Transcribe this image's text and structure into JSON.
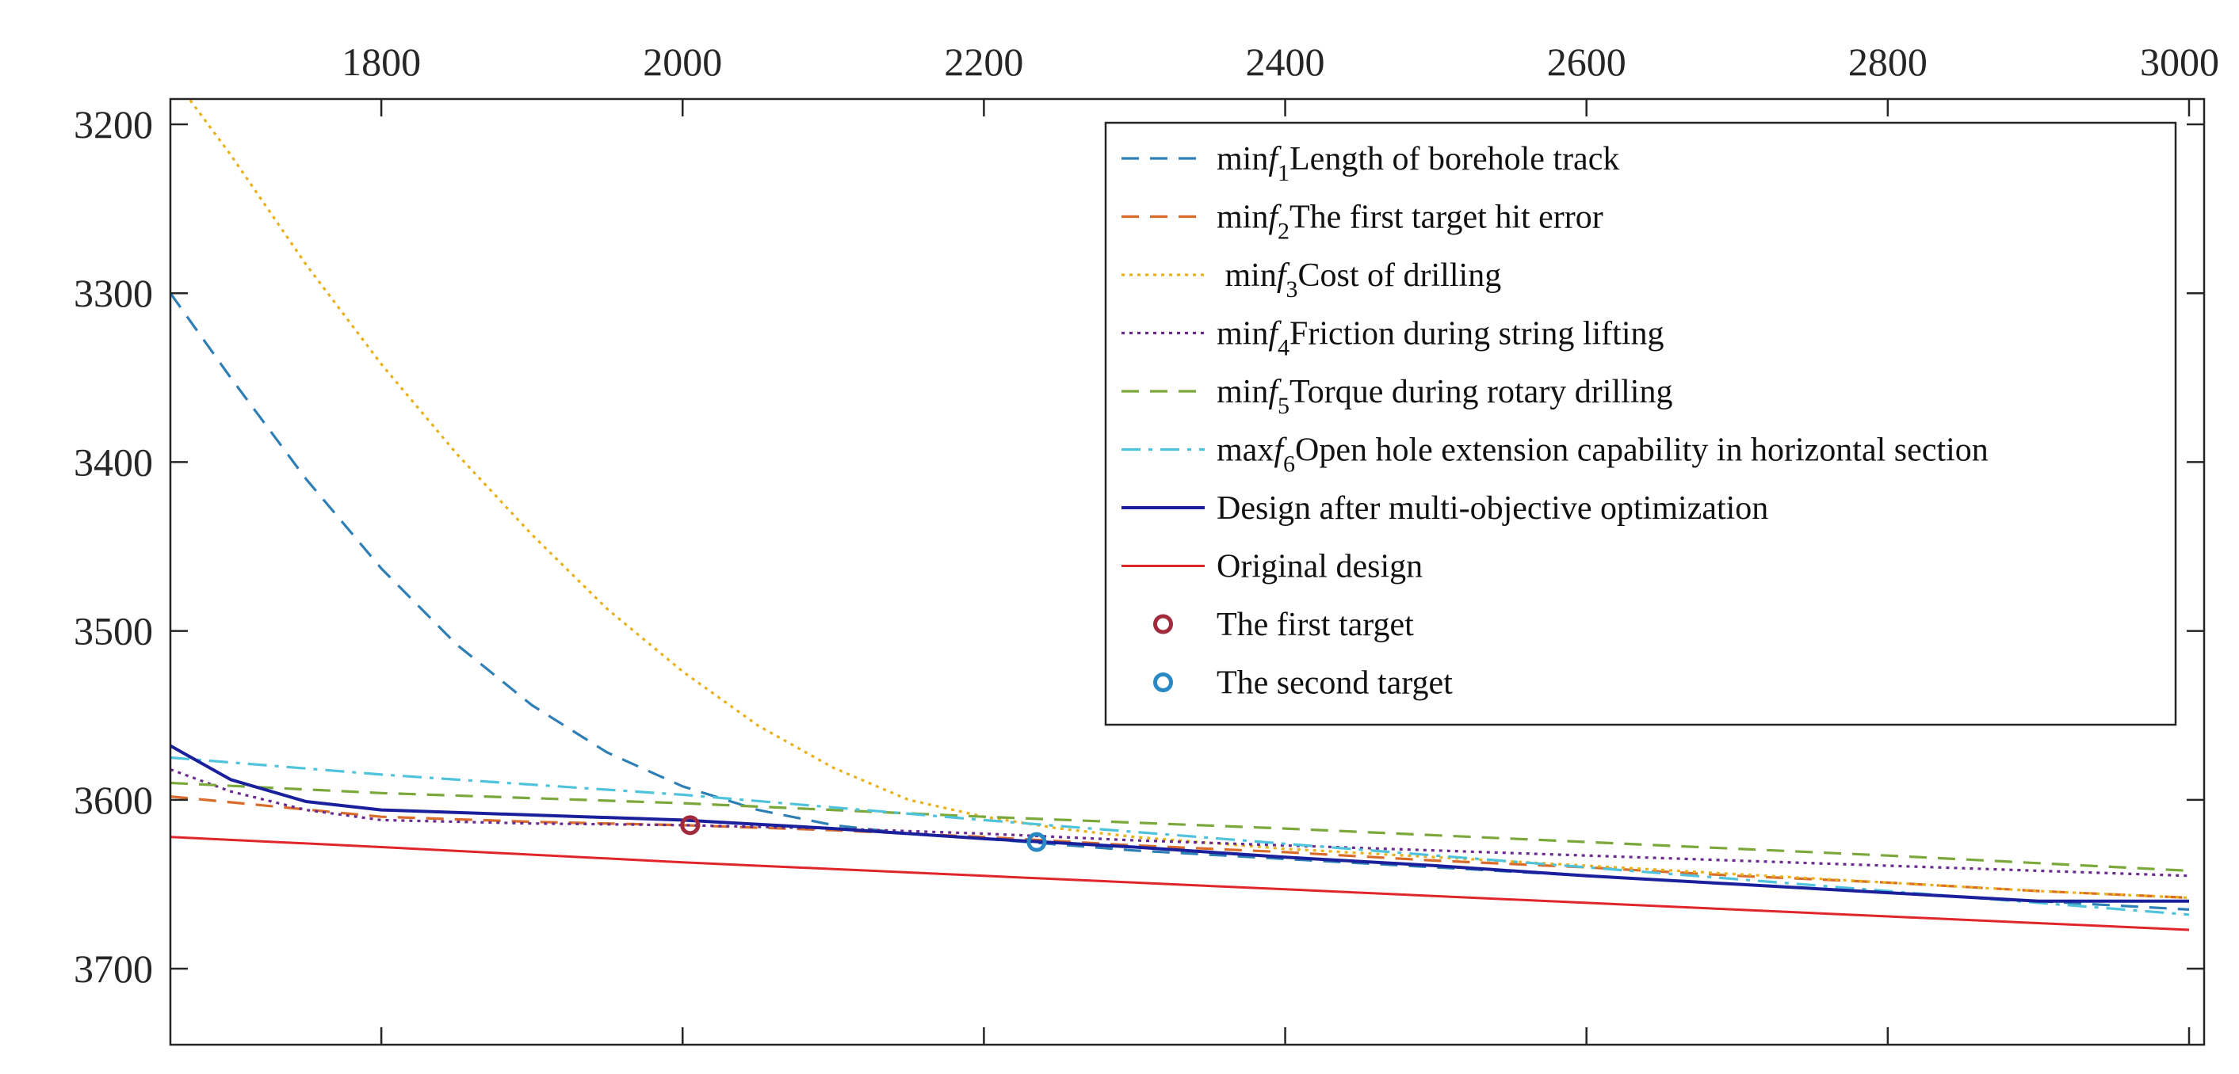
{
  "chart_data": {
    "type": "line",
    "title": "",
    "xlabel": "",
    "ylabel": "",
    "x_axis_position": "top",
    "y_axis_reversed": true,
    "xlim": [
      1660,
      3010
    ],
    "ylim": [
      3185,
      3745
    ],
    "xticks": [
      1800,
      2000,
      2200,
      2400,
      2600,
      2800,
      3000
    ],
    "yticks": [
      3200,
      3300,
      3400,
      3500,
      3600,
      3700
    ],
    "legend_position": "top-right",
    "series": [
      {
        "name": "Length of borehole track",
        "prefix": "min",
        "fvar": "f",
        "sub": "1",
        "color": "#2e7fb5",
        "dash": "dashed",
        "points": [
          [
            1660,
            3300
          ],
          [
            1700,
            3350
          ],
          [
            1750,
            3410
          ],
          [
            1800,
            3463
          ],
          [
            1850,
            3508
          ],
          [
            1900,
            3544
          ],
          [
            1950,
            3572
          ],
          [
            2000,
            3592
          ],
          [
            2050,
            3606
          ],
          [
            2100,
            3615
          ],
          [
            2150,
            3620
          ],
          [
            2200,
            3623
          ],
          [
            2300,
            3630
          ],
          [
            2400,
            3635
          ],
          [
            2500,
            3640
          ],
          [
            2600,
            3645
          ],
          [
            2700,
            3650
          ],
          [
            2800,
            3655
          ],
          [
            2900,
            3660
          ],
          [
            3000,
            3665
          ]
        ]
      },
      {
        "name": "The first target hit error",
        "prefix": "min",
        "fvar": "f",
        "sub": "2",
        "color": "#d96b2b",
        "dash": "dashed",
        "points": [
          [
            1660,
            3598
          ],
          [
            1800,
            3610
          ],
          [
            1900,
            3613
          ],
          [
            2000,
            3615
          ],
          [
            2100,
            3618
          ],
          [
            2200,
            3622
          ],
          [
            2300,
            3627
          ],
          [
            2400,
            3631
          ],
          [
            2500,
            3636
          ],
          [
            2600,
            3640
          ],
          [
            2700,
            3645
          ],
          [
            2800,
            3649
          ],
          [
            2900,
            3654
          ],
          [
            3000,
            3658
          ]
        ]
      },
      {
        "name": "Cost of drilling",
        "prefix": "min",
        "fvar": "f",
        "sub": "3",
        "color": "#e8b11a",
        "dash": "dotted",
        "lead_space": true,
        "points": [
          [
            1670,
            3182
          ],
          [
            1700,
            3218
          ],
          [
            1750,
            3283
          ],
          [
            1800,
            3342
          ],
          [
            1850,
            3395
          ],
          [
            1900,
            3443
          ],
          [
            1950,
            3487
          ],
          [
            2000,
            3524
          ],
          [
            2050,
            3556
          ],
          [
            2100,
            3581
          ],
          [
            2150,
            3600
          ],
          [
            2200,
            3610
          ],
          [
            2250,
            3617
          ],
          [
            2300,
            3622
          ],
          [
            2400,
            3629
          ],
          [
            2500,
            3634
          ],
          [
            2600,
            3639
          ],
          [
            2700,
            3644
          ],
          [
            2800,
            3649
          ],
          [
            2900,
            3654
          ],
          [
            3000,
            3658
          ]
        ]
      },
      {
        "name": "Friction during string lifting",
        "prefix": "min",
        "fvar": "f",
        "sub": "4",
        "color": "#6a2b8f",
        "dash": "dotted",
        "points": [
          [
            1660,
            3582
          ],
          [
            1700,
            3595
          ],
          [
            1750,
            3606
          ],
          [
            1800,
            3612
          ],
          [
            1900,
            3614
          ],
          [
            2000,
            3615
          ],
          [
            2100,
            3617
          ],
          [
            2200,
            3620
          ],
          [
            2300,
            3624
          ],
          [
            2400,
            3627
          ],
          [
            2500,
            3630
          ],
          [
            2600,
            3633
          ],
          [
            2700,
            3636
          ],
          [
            2800,
            3639
          ],
          [
            2900,
            3642
          ],
          [
            3000,
            3645
          ]
        ]
      },
      {
        "name": "Torque during rotary drilling",
        "prefix": "min",
        "fvar": "f",
        "sub": "5",
        "color": "#7aa83a",
        "dash": "dashed",
        "points": [
          [
            1660,
            3590
          ],
          [
            1800,
            3596
          ],
          [
            2000,
            3602
          ],
          [
            2200,
            3610
          ],
          [
            2400,
            3617
          ],
          [
            2600,
            3625
          ],
          [
            2800,
            3633
          ],
          [
            3000,
            3642
          ]
        ]
      },
      {
        "name": "Open hole extension capability in horizontal section",
        "prefix": "max",
        "fvar": "f",
        "sub": "6",
        "color": "#4fc3dc",
        "dash": "dashdot",
        "points": [
          [
            1660,
            3575
          ],
          [
            1800,
            3585
          ],
          [
            2000,
            3597
          ],
          [
            2200,
            3612
          ],
          [
            2400,
            3626
          ],
          [
            2600,
            3640
          ],
          [
            2800,
            3654
          ],
          [
            3000,
            3668
          ]
        ]
      },
      {
        "name": "Design after multi-objective optimization",
        "color": "#1a1f9c",
        "dash": "solid",
        "width": 4,
        "points": [
          [
            1660,
            3568
          ],
          [
            1700,
            3588
          ],
          [
            1750,
            3601
          ],
          [
            1800,
            3606
          ],
          [
            1900,
            3609
          ],
          [
            2000,
            3612
          ],
          [
            2100,
            3617
          ],
          [
            2200,
            3623
          ],
          [
            2300,
            3628
          ],
          [
            2400,
            3634
          ],
          [
            2500,
            3639
          ],
          [
            2600,
            3645
          ],
          [
            2700,
            3650
          ],
          [
            2800,
            3655
          ],
          [
            2900,
            3660
          ],
          [
            3000,
            3660
          ]
        ]
      },
      {
        "name": "Original design",
        "color": "#e0262b",
        "dash": "solid",
        "width": 3,
        "points": [
          [
            1660,
            3622
          ],
          [
            1800,
            3628
          ],
          [
            2000,
            3637
          ],
          [
            2200,
            3645
          ],
          [
            2400,
            3653
          ],
          [
            2600,
            3661
          ],
          [
            2800,
            3669
          ],
          [
            3000,
            3677
          ]
        ]
      }
    ],
    "markers": [
      {
        "name": "The first target",
        "color": "#a12b3c",
        "x": 2005,
        "y": 3615
      },
      {
        "name": "The second target",
        "color": "#2a88c4",
        "x": 2235,
        "y": 3625
      }
    ]
  }
}
